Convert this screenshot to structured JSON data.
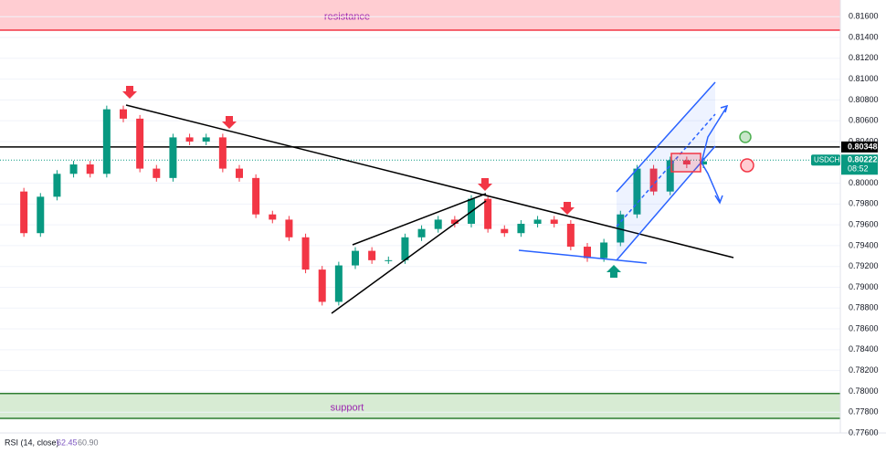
{
  "chart_data": {
    "type": "candlestick",
    "symbol": "USDCHF",
    "ylim": [
      0.776,
      0.8176
    ],
    "yticks": [
      {
        "value": 0.816,
        "label": "0.81600"
      },
      {
        "value": 0.814,
        "label": "0.81400"
      },
      {
        "value": 0.812,
        "label": "0.81200"
      },
      {
        "value": 0.81,
        "label": "0.81000"
      },
      {
        "value": 0.808,
        "label": "0.80800"
      },
      {
        "value": 0.806,
        "label": "0.80600"
      },
      {
        "value": 0.804,
        "label": "0.80400"
      },
      {
        "value": 0.8,
        "label": "0.80000"
      },
      {
        "value": 0.798,
        "label": "0.79800"
      },
      {
        "value": 0.796,
        "label": "0.79600"
      },
      {
        "value": 0.794,
        "label": "0.79400"
      },
      {
        "value": 0.792,
        "label": "0.79200"
      },
      {
        "value": 0.79,
        "label": "0.79000"
      },
      {
        "value": 0.788,
        "label": "0.78800"
      },
      {
        "value": 0.786,
        "label": "0.78600"
      },
      {
        "value": 0.784,
        "label": "0.78400"
      },
      {
        "value": 0.782,
        "label": "0.78200"
      },
      {
        "value": 0.78,
        "label": "0.78000"
      },
      {
        "value": 0.778,
        "label": "0.77800"
      },
      {
        "value": 0.776,
        "label": "0.77600"
      }
    ],
    "closes": [
      0.7992,
      0.7952,
      0.7987,
      0.8009,
      0.8018,
      0.8009,
      0.8071,
      0.8062,
      0.8014,
      0.8005,
      0.8044,
      0.804,
      0.8044,
      0.8014,
      0.8005,
      0.797,
      0.7965,
      0.7948,
      0.7917,
      0.7886,
      0.7921,
      0.7935,
      0.7926,
      0.7926,
      0.7948,
      0.7956,
      0.7965,
      0.7961,
      0.7985,
      0.7956,
      0.7952,
      0.7961,
      0.7965,
      0.7961,
      0.7939,
      0.7928,
      0.7943,
      0.797,
      0.8014,
      0.7992,
      0.8022,
      0.8018,
      0.8021
    ],
    "up_color": "#089981",
    "down_color": "#f23645",
    "resistance": {
      "label": "resistance",
      "low": 0.8147,
      "high": 0.8176
    },
    "support": {
      "label": "support",
      "low": 0.7774,
      "high": 0.7798
    },
    "level": {
      "value": 0.80348,
      "label": "0.80348"
    },
    "last_price": {
      "value": 0.80222,
      "label": "0.80222",
      "countdown": "08:52"
    },
    "rsi": {
      "label": "RSI (14, close)",
      "values": [
        "62.45",
        "60.90"
      ]
    }
  }
}
